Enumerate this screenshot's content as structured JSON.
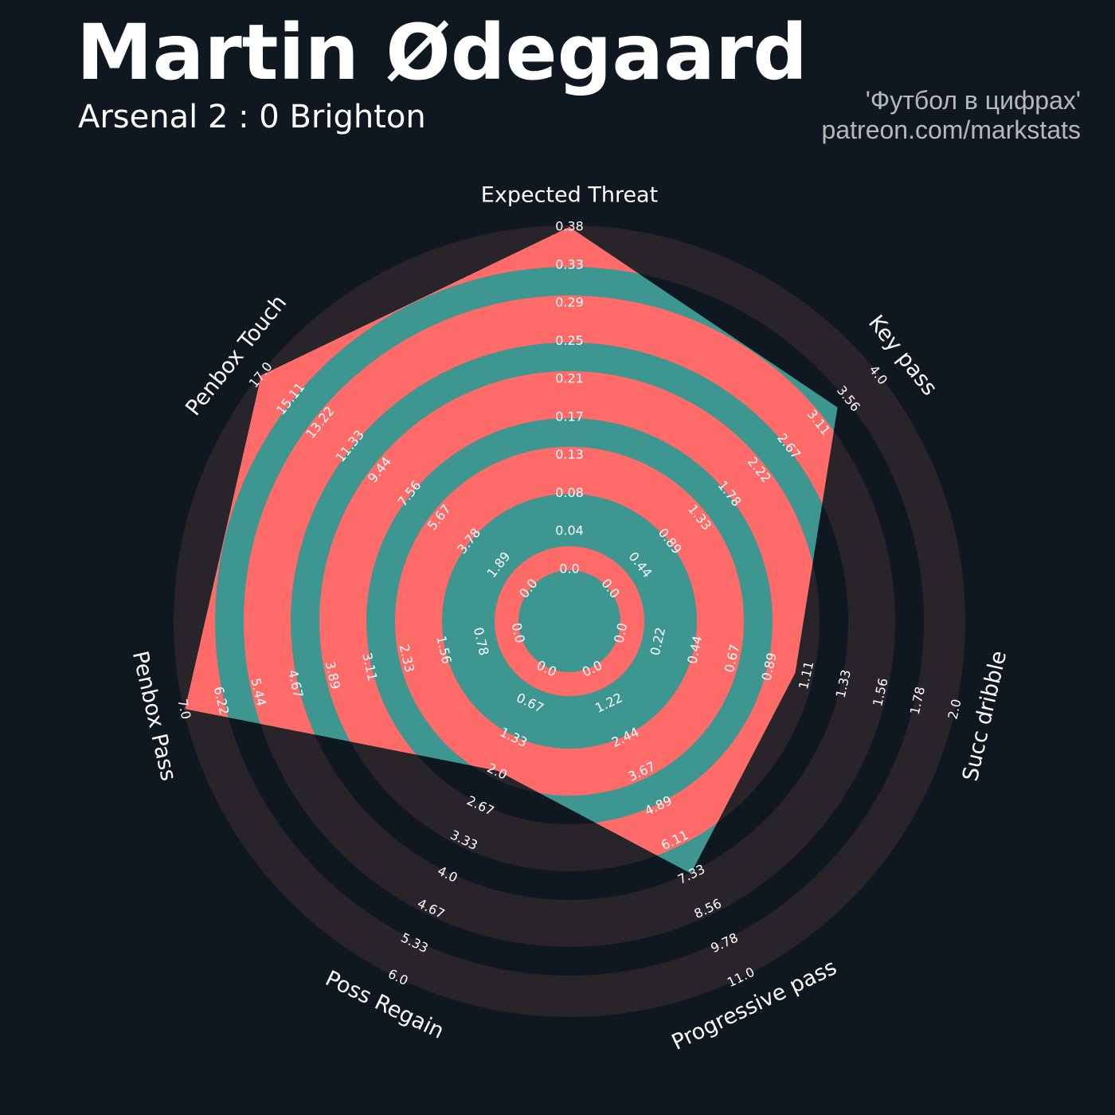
{
  "header": {
    "player_name": "Martin Ødegaard",
    "match": "Arsenal 2 : 0 Brighton",
    "credit_line_1": "'Футбол в цифрах'",
    "credit_line_2": "patreon.com/markstats"
  },
  "colors": {
    "background": "#0f1820",
    "ring_band": "#29242a",
    "player_fill": "#3e9690",
    "player_ring": "#ff6b68",
    "label": "#ffffff",
    "credit": "#b8b8b8"
  },
  "chart_data": {
    "type": "radar",
    "params": [
      "Expected Threat",
      "Key pass",
      "Succ dribble",
      "Progressive pass",
      "Poss Regain",
      "Penbox Pass",
      "Penbox Touch"
    ],
    "ranges": [
      [
        0.0,
        0.38
      ],
      [
        0.0,
        4.0
      ],
      [
        0.0,
        2.0
      ],
      [
        0.0,
        11.0
      ],
      [
        0.0,
        6.0
      ],
      [
        0.0,
        7.0
      ],
      [
        0.0,
        17.0
      ]
    ],
    "values": [
      0.38,
      3.4,
      1.05,
      7.33,
      2.0,
      7.0,
      17.0
    ],
    "tick_labels": [
      [
        "0.0",
        "0.04",
        "0.08",
        "0.13",
        "0.17",
        "0.21",
        "0.25",
        "0.29",
        "0.33",
        "0.38"
      ],
      [
        "0.0",
        "0.44",
        "0.89",
        "1.33",
        "1.78",
        "2.22",
        "2.67",
        "3.11",
        "3.56",
        "4.0"
      ],
      [
        "0.0",
        "0.22",
        "0.44",
        "0.67",
        "0.89",
        "1.11",
        "1.33",
        "1.56",
        "1.78",
        "2.0"
      ],
      [
        "0.0",
        "1.22",
        "2.44",
        "3.67",
        "4.89",
        "6.11",
        "7.33",
        "8.56",
        "9.78",
        "11.0"
      ],
      [
        "0.0",
        "0.67",
        "1.33",
        "2.0",
        "2.67",
        "3.33",
        "4.0",
        "4.67",
        "5.33",
        "6.0"
      ],
      [
        "0.0",
        "0.78",
        "1.56",
        "2.33",
        "3.11",
        "3.89",
        "4.67",
        "5.44",
        "6.22",
        "7.0"
      ],
      [
        "0.0",
        "1.89",
        "3.78",
        "5.67",
        "7.56",
        "9.44",
        "11.33",
        "13.22",
        "15.11",
        "17.0"
      ]
    ]
  }
}
